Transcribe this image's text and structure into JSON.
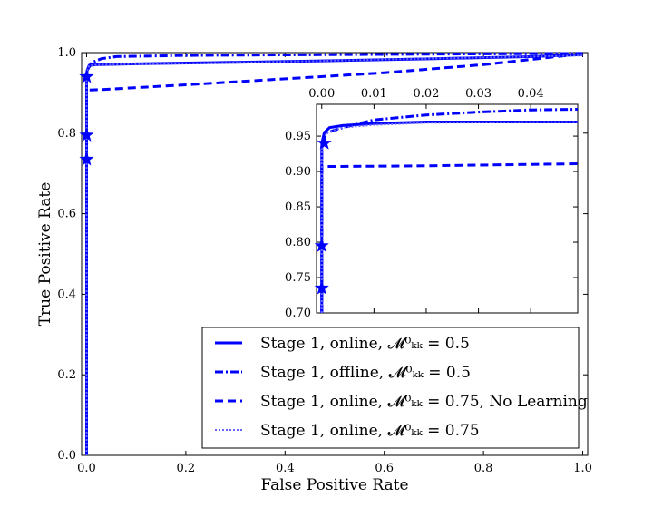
{
  "chart_data": {
    "type": "line",
    "xlabel": "False Positive Rate",
    "ylabel": "True Positive Rate",
    "xlim": [
      -0.01,
      1.01
    ],
    "ylim": [
      0.0,
      1.0
    ],
    "xticks": [
      "0.0",
      "0.2",
      "0.4",
      "0.6",
      "0.8",
      "1.0"
    ],
    "yticks": [
      "0.0",
      "0.2",
      "0.4",
      "0.6",
      "0.8",
      "1.0"
    ],
    "legend_location": "lower-right",
    "grid": false,
    "series": [
      {
        "name": "Stage 1, online, 𝓜⁰ₖₖ = 0.5",
        "color": "#0000ff",
        "style": "solid",
        "points": [
          [
            0.0,
            0.0
          ],
          [
            0.0,
            0.94
          ],
          [
            0.001,
            0.955
          ],
          [
            0.005,
            0.968
          ],
          [
            0.02,
            0.97
          ],
          [
            0.1,
            0.972
          ],
          [
            0.3,
            0.976
          ],
          [
            0.5,
            0.98
          ],
          [
            0.7,
            0.985
          ],
          [
            0.9,
            0.99
          ],
          [
            1.0,
            0.995
          ]
        ]
      },
      {
        "name": "Stage 1, offline, 𝓜⁰ₖₖ = 0.5",
        "color": "#0000ff",
        "style": "dashdot",
        "points": [
          [
            0.0,
            0.0
          ],
          [
            0.0,
            0.94
          ],
          [
            0.001,
            0.955
          ],
          [
            0.01,
            0.975
          ],
          [
            0.03,
            0.985
          ],
          [
            0.06,
            0.99
          ],
          [
            0.2,
            0.993
          ],
          [
            0.5,
            0.995
          ],
          [
            1.0,
            0.998
          ]
        ]
      },
      {
        "name": "Stage 1, online, 𝓜⁰ₖₖ = 0.75, No Learning",
        "color": "#0000ff",
        "style": "dashed",
        "points": [
          [
            0.0,
            0.0
          ],
          [
            0.0,
            0.735
          ],
          [
            0.0,
            0.907
          ],
          [
            0.03,
            0.908
          ],
          [
            0.2,
            0.92
          ],
          [
            0.4,
            0.935
          ],
          [
            0.6,
            0.95
          ],
          [
            0.8,
            0.97
          ],
          [
            1.0,
            0.997
          ]
        ]
      },
      {
        "name": "Stage 1, online, 𝓜⁰ₖₖ = 0.75",
        "color": "#6666ff",
        "style": "dotted",
        "points": [
          [
            0.0,
            0.0
          ],
          [
            0.0,
            0.94
          ],
          [
            0.001,
            0.955
          ],
          [
            0.005,
            0.967
          ],
          [
            0.02,
            0.97
          ],
          [
            0.3,
            0.975
          ],
          [
            1.0,
            0.993
          ]
        ]
      }
    ],
    "markers": [
      {
        "x": 0.0,
        "y": 0.735
      },
      {
        "x": 0.0,
        "y": 0.795
      },
      {
        "x": 0.0,
        "y": 0.94
      }
    ],
    "inset": {
      "xlim": [
        -0.001,
        0.049
      ],
      "ylim": [
        0.7,
        0.995
      ],
      "xticks": [
        "0.00",
        "0.01",
        "0.02",
        "0.03",
        "0.04"
      ],
      "yticks": [
        "0.70",
        "0.75",
        "0.80",
        "0.85",
        "0.90",
        "0.95"
      ],
      "series": [
        {
          "style": "solid",
          "color": "#0000ff",
          "points": [
            [
              0.0,
              0.7
            ],
            [
              0.0,
              0.94
            ],
            [
              0.0005,
              0.955
            ],
            [
              0.0015,
              0.962
            ],
            [
              0.004,
              0.965
            ],
            [
              0.01,
              0.968
            ],
            [
              0.02,
              0.97
            ],
            [
              0.049,
              0.97
            ]
          ]
        },
        {
          "style": "dashdot",
          "color": "#0000ff",
          "points": [
            [
              0.0,
              0.7
            ],
            [
              0.0,
              0.94
            ],
            [
              0.001,
              0.955
            ],
            [
              0.004,
              0.962
            ],
            [
              0.01,
              0.973
            ],
            [
              0.02,
              0.98
            ],
            [
              0.03,
              0.984
            ],
            [
              0.04,
              0.987
            ],
            [
              0.049,
              0.988
            ]
          ]
        },
        {
          "style": "dashed",
          "color": "#0000ff",
          "points": [
            [
              0.0,
              0.7
            ],
            [
              0.0,
              0.907
            ],
            [
              0.02,
              0.908
            ],
            [
              0.049,
              0.911
            ]
          ]
        },
        {
          "style": "dotted",
          "color": "#6666ff",
          "points": [
            [
              0.0,
              0.7
            ],
            [
              0.0,
              0.94
            ],
            [
              0.001,
              0.955
            ],
            [
              0.004,
              0.962
            ],
            [
              0.01,
              0.966
            ],
            [
              0.02,
              0.969
            ],
            [
              0.049,
              0.97
            ]
          ]
        }
      ],
      "markers": [
        {
          "x": 0.0,
          "y": 0.735
        },
        {
          "x": 0.0,
          "y": 0.795
        },
        {
          "x": 0.0005,
          "y": 0.94
        }
      ]
    }
  }
}
